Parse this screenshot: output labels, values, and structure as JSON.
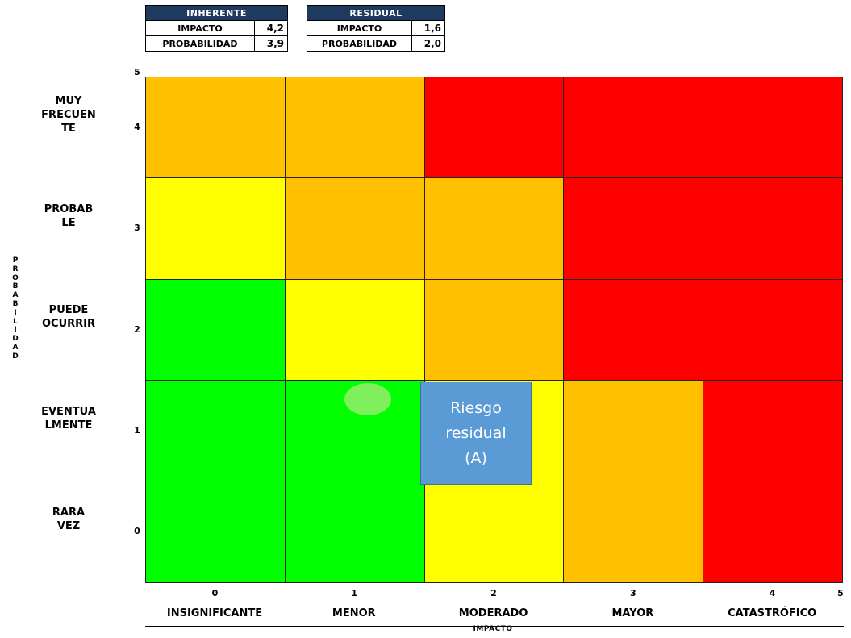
{
  "inherent_table": {
    "header": "INHERENTE",
    "rows": [
      {
        "label": "IMPACTO",
        "value": "4,2"
      },
      {
        "label": "PROBABILIDAD",
        "value": "3,9"
      }
    ]
  },
  "residual_table": {
    "header": "RESIDUAL",
    "rows": [
      {
        "label": "IMPACTO",
        "value": "1,6"
      },
      {
        "label": "PROBABILIDAD",
        "value": "2,0"
      }
    ]
  },
  "chart_data": {
    "type": "heatmap",
    "title": "",
    "xlabel": "IMPACTO",
    "ylabel": "PROBABILIDAD",
    "xlim": [
      0,
      5
    ],
    "ylim": [
      0,
      5
    ],
    "x_ticks": [
      "0",
      "1",
      "2",
      "3",
      "4",
      "5"
    ],
    "y_ticks": [
      "0",
      "1",
      "2",
      "3",
      "4",
      "5"
    ],
    "columns": [
      "INSIGNIFICANTE",
      "MENOR",
      "MODERADO",
      "MAYOR",
      "CATASTRÓFICO"
    ],
    "rows_top_to_bottom": [
      "MUY FRECUENTE",
      "PROBABLE",
      "PUEDE OCURRIR",
      "EVENTUALMENTE",
      "RARA VEZ"
    ],
    "row_labels_display": [
      "MUY\nFRECUEN\nTE",
      "PROBAB\nLE",
      "PUEDE\nOCURRIR",
      "EVENTUA\nLMENTE",
      "RARA\nVEZ"
    ],
    "levels_top_to_bottom": [
      [
        "high",
        "high",
        "extreme",
        "extreme",
        "extreme"
      ],
      [
        "moderate",
        "high",
        "high",
        "extreme",
        "extreme"
      ],
      [
        "low",
        "moderate",
        "high",
        "extreme",
        "extreme"
      ],
      [
        "low",
        "low",
        "moderate",
        "high",
        "extreme"
      ],
      [
        "low",
        "low",
        "moderate",
        "high",
        "extreme"
      ]
    ],
    "level_colors": {
      "low": "#00ff00",
      "moderate": "#ffff00",
      "high": "#ffc000",
      "extreme": "#ff0000"
    },
    "markers": [
      {
        "label": "",
        "impact": 1.6,
        "probability": 2.0,
        "shape": "ellipse",
        "color": "#86ee60"
      },
      {
        "label": "Riesgo residual (A)",
        "impact": 2.5,
        "probability": 1.0,
        "shape": "box",
        "color": "#5b9bd5"
      }
    ]
  }
}
